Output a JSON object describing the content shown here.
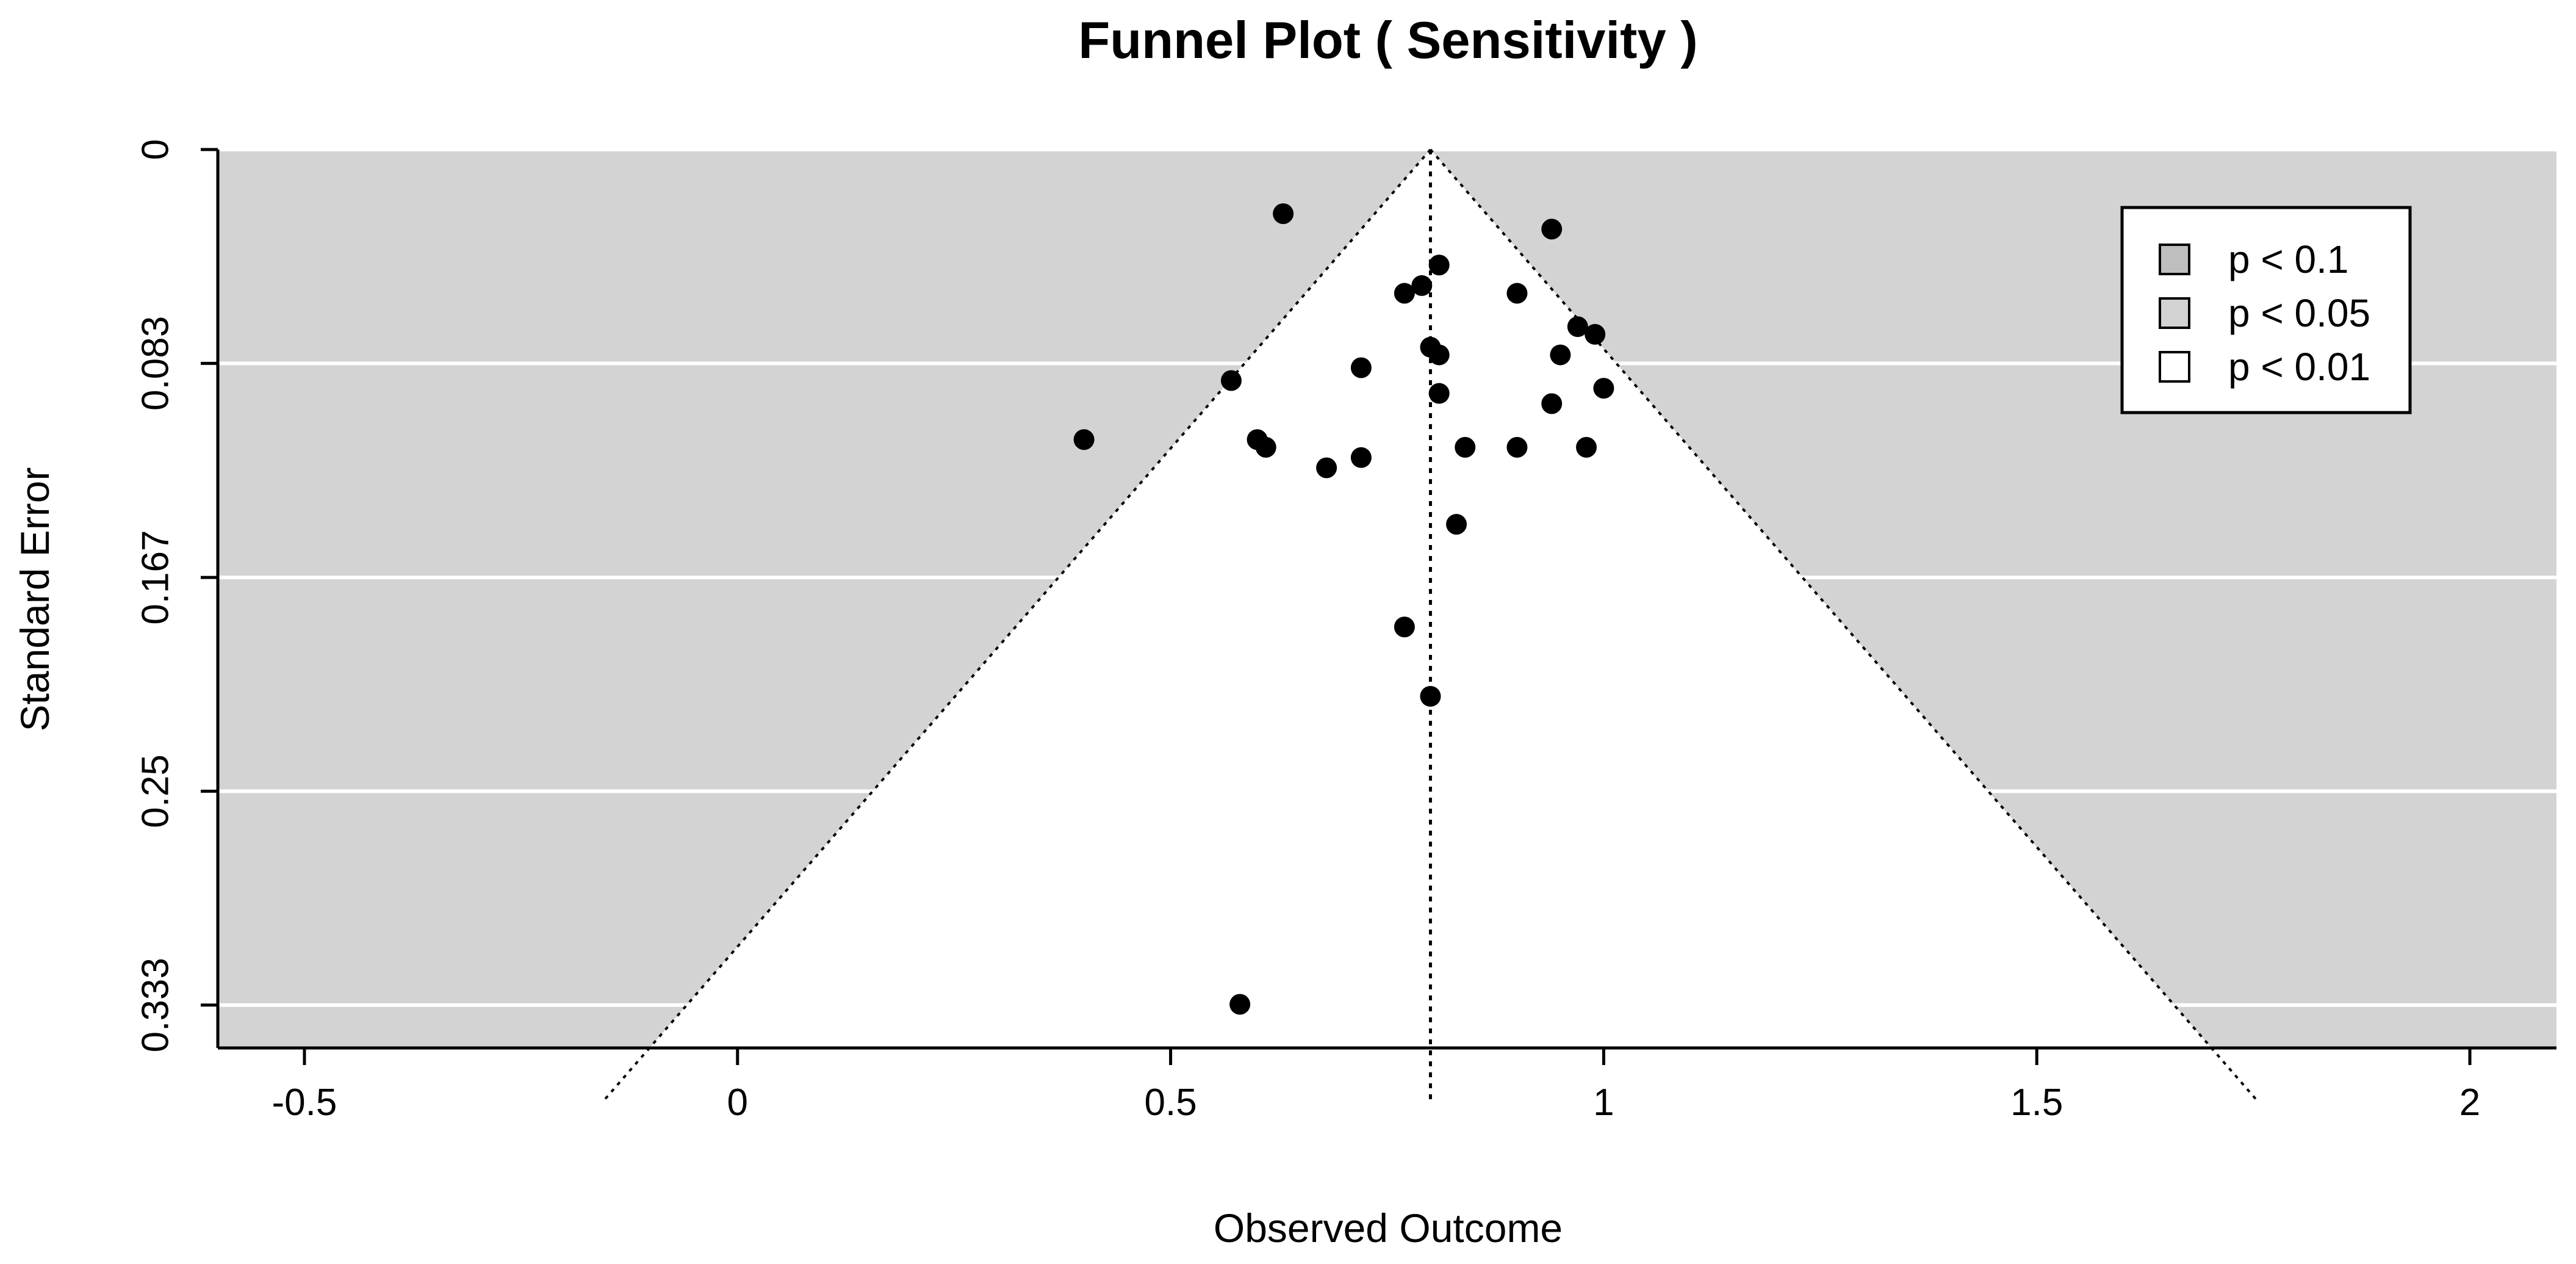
{
  "chart_data": {
    "type": "scatter",
    "title": "Funnel Plot (  Sensitivity  )",
    "xlabel": "Observed Outcome",
    "ylabel": "Standard Error",
    "xlim": [
      -0.6,
      2.1
    ],
    "ylim": [
      0,
      0.35
    ],
    "y_reversed": true,
    "x_ticks": [
      -0.5,
      0,
      0.5,
      1,
      1.5,
      2
    ],
    "x_tick_labels": [
      "-0.5",
      "0",
      "0.5",
      "1",
      "1.5",
      "2"
    ],
    "y_ticks": [
      0,
      0.0833,
      0.1667,
      0.25,
      0.3333
    ],
    "y_tick_labels": [
      "0",
      "0.083",
      "0.167",
      "0.25",
      "0.333"
    ],
    "center": 0.8,
    "funnel_z": 2.576,
    "grid": "horizontal white lines at y ticks",
    "legend": {
      "position": "top-right",
      "entries": [
        {
          "label": "p < 0.1",
          "color": "#bebebe"
        },
        {
          "label": "p < 0.05",
          "color": "#d2d2d2"
        },
        {
          "label": "p < 0.01",
          "color": "#ffffff"
        }
      ]
    },
    "colors": {
      "background": "#d3d3d3",
      "grid": "#ffffff",
      "funnel": "#ffffff",
      "point": "#000000"
    },
    "points": [
      {
        "x": 0.63,
        "y": 0.025
      },
      {
        "x": 0.94,
        "y": 0.031
      },
      {
        "x": 0.81,
        "y": 0.045
      },
      {
        "x": 0.79,
        "y": 0.053
      },
      {
        "x": 0.77,
        "y": 0.056
      },
      {
        "x": 0.9,
        "y": 0.056
      },
      {
        "x": 0.97,
        "y": 0.069
      },
      {
        "x": 0.99,
        "y": 0.072
      },
      {
        "x": 0.8,
        "y": 0.077
      },
      {
        "x": 0.81,
        "y": 0.08
      },
      {
        "x": 0.95,
        "y": 0.08
      },
      {
        "x": 0.72,
        "y": 0.085
      },
      {
        "x": 0.57,
        "y": 0.09
      },
      {
        "x": 1.0,
        "y": 0.093
      },
      {
        "x": 0.81,
        "y": 0.095
      },
      {
        "x": 0.94,
        "y": 0.099
      },
      {
        "x": 0.4,
        "y": 0.113
      },
      {
        "x": 0.6,
        "y": 0.113
      },
      {
        "x": 0.61,
        "y": 0.116
      },
      {
        "x": 0.84,
        "y": 0.116
      },
      {
        "x": 0.9,
        "y": 0.116
      },
      {
        "x": 0.98,
        "y": 0.116
      },
      {
        "x": 0.72,
        "y": 0.12
      },
      {
        "x": 0.68,
        "y": 0.124
      },
      {
        "x": 0.83,
        "y": 0.146
      },
      {
        "x": 0.77,
        "y": 0.186
      },
      {
        "x": 0.8,
        "y": 0.213
      },
      {
        "x": 0.58,
        "y": 0.333
      }
    ]
  }
}
